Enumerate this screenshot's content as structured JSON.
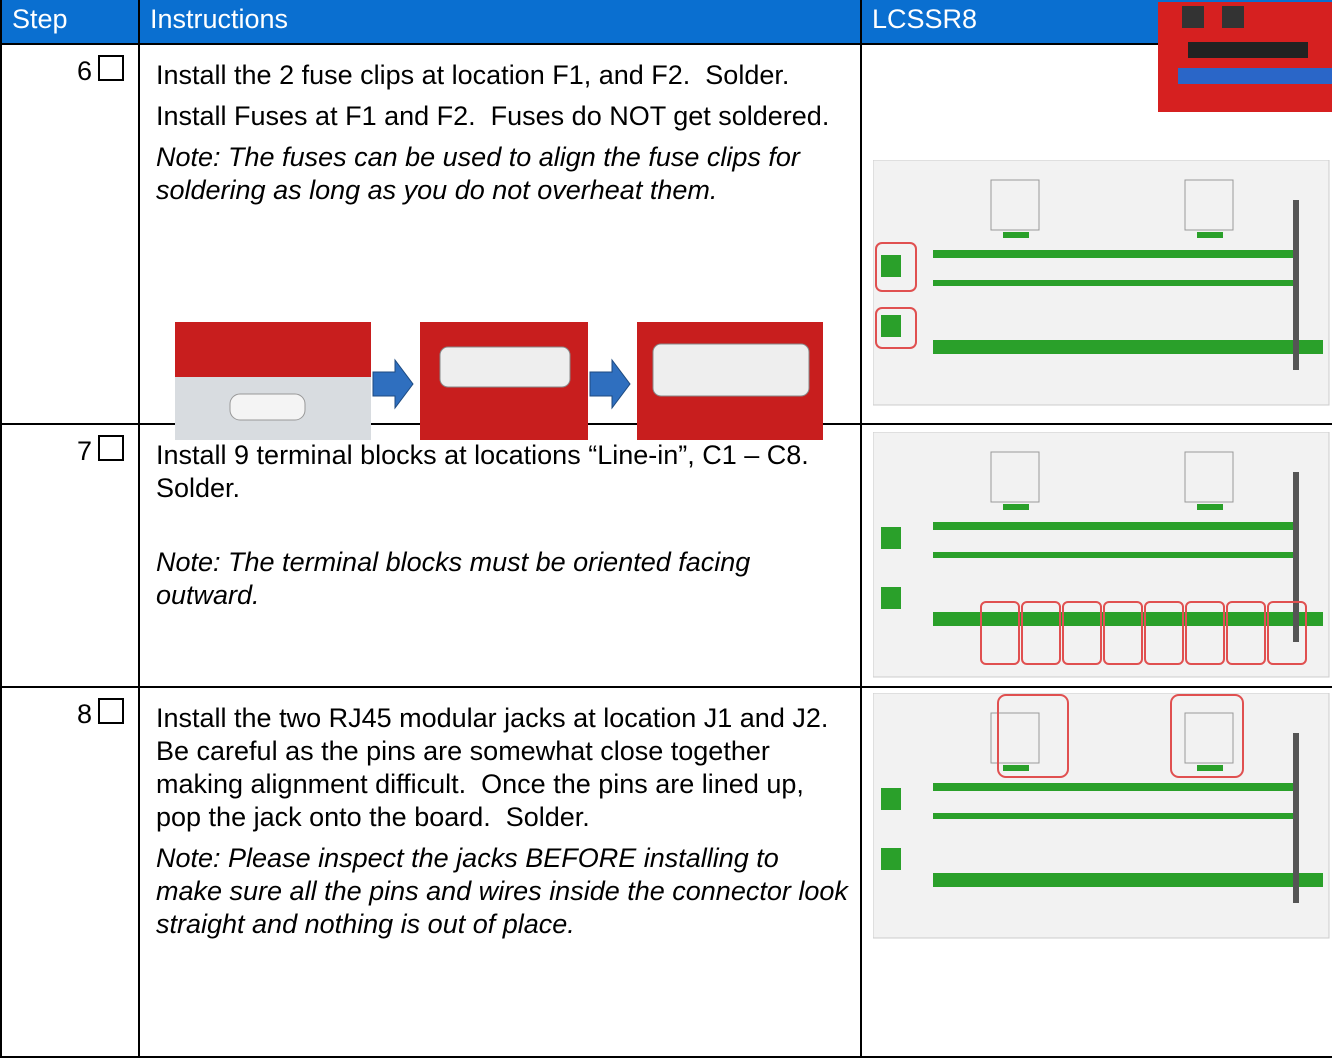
{
  "header": {
    "step": "Step",
    "instructions": "Instructions",
    "board": "LCSSR8"
  },
  "rows": [
    {
      "step": "6",
      "paragraphs": [
        "Install the 2 fuse clips at location F1, and F2.  Solder.",
        "Install Fuses at F1 and F2.  Fuses do NOT get soldered."
      ],
      "note": "Note: The fuses can be used to align the fuse clips for soldering as long as you do not overheat them."
    },
    {
      "step": "7",
      "paragraphs": [
        "Install 9 terminal blocks at locations “Line-in”, C1 – C8.  Solder."
      ],
      "note": "Note: The terminal blocks must be oriented facing outward."
    },
    {
      "step": "8",
      "paragraphs": [
        "Install the two RJ45 modular jacks at location J1 and J2. Be careful as the pins are somewhat close together making alignment difficult.  Once the pins are lined up, pop the jack onto the board.  Solder."
      ],
      "note": "Note: Please inspect the jacks BEFORE installing to make sure all the pins and wires inside the connector look straight and nothing is out of place."
    }
  ]
}
